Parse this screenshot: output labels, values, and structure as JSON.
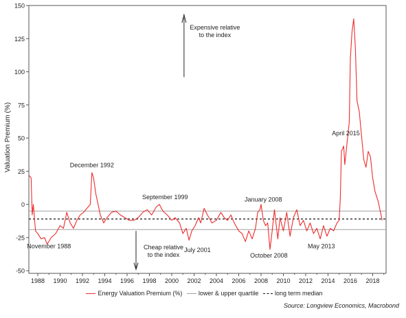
{
  "chart_data": {
    "type": "line",
    "title": "",
    "xlabel": "",
    "ylabel": "Valuation Premium (%)",
    "xlim": [
      1987.2,
      2019.2
    ],
    "ylim": [
      -52,
      150
    ],
    "x_ticks": [
      "1988",
      "1990",
      "1992",
      "1994",
      "1996",
      "1998",
      "2000",
      "2002",
      "2004",
      "2006",
      "2008",
      "2010",
      "2012",
      "2014",
      "2016",
      "2018"
    ],
    "y_ticks": [
      "150",
      "125",
      "100",
      "75",
      "50",
      "25",
      "0",
      "-25",
      "-50"
    ],
    "grid": false,
    "series": [
      {
        "name": "Energy Valuation Premium (%)",
        "color": "#ee2b2b",
        "points": [
          [
            1987.2,
            22
          ],
          [
            1987.4,
            20
          ],
          [
            1987.5,
            -8
          ],
          [
            1987.6,
            0
          ],
          [
            1987.8,
            -20
          ],
          [
            1988.0,
            -22
          ],
          [
            1988.3,
            -26
          ],
          [
            1988.6,
            -25
          ],
          [
            1988.85,
            -30
          ],
          [
            1989.2,
            -25
          ],
          [
            1989.6,
            -22
          ],
          [
            1990.0,
            -16
          ],
          [
            1990.3,
            -18
          ],
          [
            1990.6,
            -6
          ],
          [
            1990.9,
            -14
          ],
          [
            1991.2,
            -18
          ],
          [
            1991.5,
            -12
          ],
          [
            1991.8,
            -8
          ],
          [
            1992.1,
            -6
          ],
          [
            1992.4,
            -3
          ],
          [
            1992.7,
            0
          ],
          [
            1992.85,
            24
          ],
          [
            1993.0,
            20
          ],
          [
            1993.2,
            8
          ],
          [
            1993.4,
            0
          ],
          [
            1993.6,
            -8
          ],
          [
            1993.9,
            -14
          ],
          [
            1994.2,
            -10
          ],
          [
            1994.6,
            -6
          ],
          [
            1995.0,
            -5
          ],
          [
            1995.4,
            -8
          ],
          [
            1995.8,
            -10
          ],
          [
            1996.2,
            -12
          ],
          [
            1996.6,
            -12
          ],
          [
            1997.0,
            -10
          ],
          [
            1997.4,
            -6
          ],
          [
            1997.8,
            -4
          ],
          [
            1998.2,
            -8
          ],
          [
            1998.6,
            -2
          ],
          [
            1998.9,
            0
          ],
          [
            1999.2,
            -5
          ],
          [
            1999.6,
            -8
          ],
          [
            2000.0,
            -12
          ],
          [
            2000.3,
            -10
          ],
          [
            2000.7,
            -14
          ],
          [
            2001.0,
            -22
          ],
          [
            2001.3,
            -18
          ],
          [
            2001.55,
            -27
          ],
          [
            2001.8,
            -20
          ],
          [
            2002.1,
            -16
          ],
          [
            2002.4,
            -10
          ],
          [
            2002.6,
            -14
          ],
          [
            2002.9,
            -3
          ],
          [
            2003.2,
            -8
          ],
          [
            2003.6,
            -14
          ],
          [
            2004.0,
            -12
          ],
          [
            2004.4,
            -6
          ],
          [
            2004.7,
            -10
          ],
          [
            2005.0,
            -12
          ],
          [
            2005.3,
            -8
          ],
          [
            2005.6,
            -14
          ],
          [
            2006.0,
            -20
          ],
          [
            2006.3,
            -22
          ],
          [
            2006.6,
            -28
          ],
          [
            2006.9,
            -20
          ],
          [
            2007.2,
            -26
          ],
          [
            2007.5,
            -18
          ],
          [
            2007.7,
            -6
          ],
          [
            2007.9,
            -4
          ],
          [
            2008.0,
            0
          ],
          [
            2008.2,
            -12
          ],
          [
            2008.4,
            -16
          ],
          [
            2008.6,
            -14
          ],
          [
            2008.8,
            -34
          ],
          [
            2009.0,
            -20
          ],
          [
            2009.2,
            -4
          ],
          [
            2009.5,
            -26
          ],
          [
            2009.7,
            -10
          ],
          [
            2010.0,
            -20
          ],
          [
            2010.3,
            -6
          ],
          [
            2010.6,
            -24
          ],
          [
            2010.9,
            -10
          ],
          [
            2011.2,
            -4
          ],
          [
            2011.5,
            -16
          ],
          [
            2011.8,
            -12
          ],
          [
            2012.1,
            -20
          ],
          [
            2012.4,
            -14
          ],
          [
            2012.7,
            -22
          ],
          [
            2013.0,
            -18
          ],
          [
            2013.3,
            -26
          ],
          [
            2013.6,
            -16
          ],
          [
            2013.9,
            -24
          ],
          [
            2014.2,
            -18
          ],
          [
            2014.5,
            -20
          ],
          [
            2014.8,
            -14
          ],
          [
            2015.0,
            -12
          ],
          [
            2015.1,
            5
          ],
          [
            2015.2,
            40
          ],
          [
            2015.4,
            44
          ],
          [
            2015.5,
            30
          ],
          [
            2015.7,
            46
          ],
          [
            2015.9,
            62
          ],
          [
            2016.0,
            110
          ],
          [
            2016.15,
            130
          ],
          [
            2016.3,
            140
          ],
          [
            2016.45,
            118
          ],
          [
            2016.6,
            78
          ],
          [
            2016.8,
            70
          ],
          [
            2017.0,
            52
          ],
          [
            2017.2,
            34
          ],
          [
            2017.4,
            28
          ],
          [
            2017.6,
            40
          ],
          [
            2017.8,
            36
          ],
          [
            2018.0,
            20
          ],
          [
            2018.2,
            10
          ],
          [
            2018.5,
            2
          ],
          [
            2018.7,
            -6
          ],
          [
            2018.85,
            -12
          ]
        ]
      },
      {
        "name": "lower & upper quartile",
        "color": "#a0a0a0",
        "lines": [
          -5,
          -19
        ]
      },
      {
        "name": "long term median",
        "color": "#111111",
        "lines": [
          -11
        ]
      }
    ],
    "annotations": [
      {
        "text": "December 1992",
        "x": 1992.85,
        "y": 28
      },
      {
        "text": "September 1999",
        "x": 1999.4,
        "y": 4
      },
      {
        "text": "January 2008",
        "x": 2008.2,
        "y": 2
      },
      {
        "text": "April 2015",
        "x": 2015.6,
        "y": 52
      },
      {
        "text": "November 1988",
        "x": 1989.0,
        "y": -33
      },
      {
        "text": "July 2001",
        "x": 2002.3,
        "y": -36
      },
      {
        "text": "October 2008",
        "x": 2008.7,
        "y": -40
      },
      {
        "text": "May 2013",
        "x": 2013.4,
        "y": -33
      }
    ],
    "arrows": [
      {
        "text": [
          "Expensive relative",
          "to the index"
        ],
        "direction": "up",
        "x": 2001.1
      },
      {
        "text": [
          "Cheap relative",
          "to the index"
        ],
        "direction": "down",
        "x": 1996.8
      }
    ]
  },
  "legend": {
    "items": [
      {
        "label": "Energy Valuation Premium (%)"
      },
      {
        "label": "lower & upper quartile"
      },
      {
        "label": "long term median"
      }
    ]
  },
  "source": "Source: Longview Economics, Macrobond"
}
